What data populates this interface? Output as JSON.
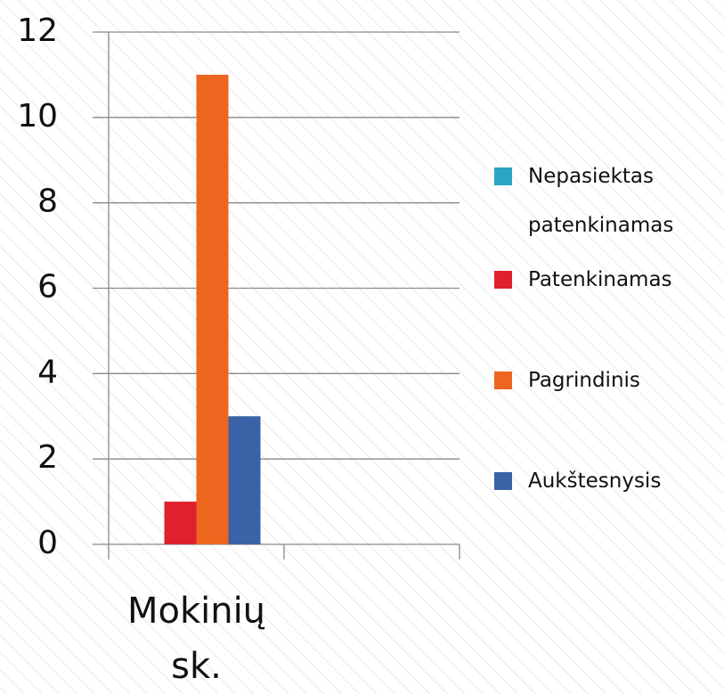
{
  "chart_data": {
    "type": "bar",
    "categories": [
      "Mokinių sk.",
      null
    ],
    "series": [
      {
        "name": "Nepasiektas patenkinamas",
        "color": "#2aa5c4",
        "values": [
          0,
          null
        ]
      },
      {
        "name": "Patenkinamas",
        "color": "#e0202e",
        "values": [
          1,
          null
        ]
      },
      {
        "name": "Pagrindinis",
        "color": "#ec6620",
        "values": [
          11,
          null
        ]
      },
      {
        "name": "Aukštesnysis",
        "color": "#3a62a6",
        "values": [
          3,
          null
        ]
      }
    ],
    "ylim": [
      0,
      12
    ],
    "yticks": [
      0,
      2,
      4,
      6,
      8,
      10,
      12
    ],
    "grid": true,
    "legend": "right"
  }
}
